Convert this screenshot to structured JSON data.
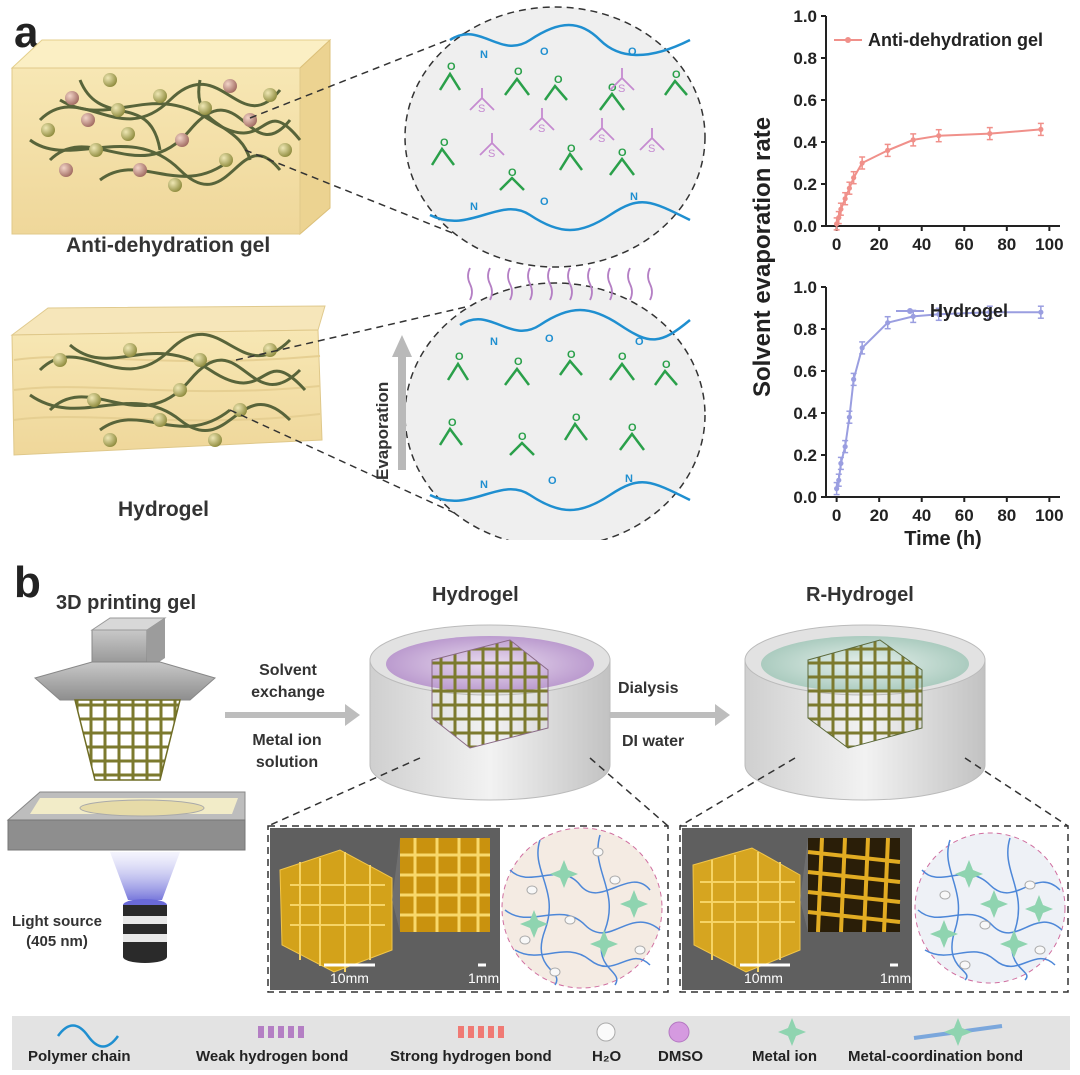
{
  "panel_a": {
    "letter": "a",
    "gel_label": "Anti-dehydration gel",
    "hydrogel_label": "Hydrogel",
    "evaporation_label": "Evaporation"
  },
  "panel_b": {
    "letter": "b",
    "printing_title": "3D printing gel",
    "light_source_line1": "Light source",
    "light_source_line2": "(405 nm)",
    "step1_top_line1": "Solvent",
    "step1_top_line2": "exchange",
    "step1_bottom_line1": "Metal ion",
    "step1_bottom_line2": "solution",
    "dish1_title": "Hydrogel",
    "step2_top": "Dialysis",
    "step2_bottom": "DI water",
    "dish2_title": "R-Hydrogel",
    "scale_large": "10mm",
    "scale_small": "1mm"
  },
  "legend": {
    "polymer_chain": "Polymer chain",
    "weak_hbond": "Weak hydrogen bond",
    "strong_hbond": "Strong hydrogen bond",
    "h2o": "H₂O",
    "dmso": "DMSO",
    "metal_ion": "Metal ion",
    "metal_coord": "Metal-coordination bond"
  },
  "colors": {
    "gel_series": "#f0908a",
    "hydrogel_series": "#9a9ee0",
    "polymer": "#1f8fd0",
    "weak_hbond": "#b47fc4",
    "strong_hbond": "#f07a74",
    "water": "#2aa04a",
    "dmso": "#c58ad0",
    "metal_ion": "#8fd4b0"
  },
  "chart_data": [
    {
      "type": "line",
      "series": [
        {
          "name": "Anti-dehydration gel",
          "x": [
            0,
            1,
            2,
            4,
            6,
            8,
            12,
            24,
            36,
            48,
            72,
            96
          ],
          "y": [
            0.01,
            0.04,
            0.08,
            0.13,
            0.18,
            0.23,
            0.3,
            0.36,
            0.41,
            0.43,
            0.44,
            0.46
          ]
        }
      ],
      "xlabel": "",
      "ylabel": "Solvent evaporation rate",
      "xlim": [
        -5,
        105
      ],
      "ylim": [
        0,
        1.0
      ],
      "xticks": [
        "0",
        "20",
        "40",
        "60",
        "80",
        "100"
      ],
      "yticks": [
        "0.0",
        "0.2",
        "0.4",
        "0.6",
        "0.8",
        "1.0"
      ],
      "legend": "top-right"
    },
    {
      "type": "line",
      "series": [
        {
          "name": "Hydrogel",
          "x": [
            0,
            1,
            2,
            4,
            6,
            8,
            12,
            24,
            36,
            48,
            72,
            96
          ],
          "y": [
            0.04,
            0.08,
            0.16,
            0.24,
            0.38,
            0.56,
            0.71,
            0.83,
            0.86,
            0.87,
            0.88,
            0.88
          ]
        }
      ],
      "xlabel": "Time (h)",
      "ylabel": "Solvent evaporation rate",
      "xlim": [
        -5,
        105
      ],
      "ylim": [
        0,
        1.0
      ],
      "xticks": [
        "0",
        "20",
        "40",
        "60",
        "80",
        "100"
      ],
      "yticks": [
        "0.0",
        "0.2",
        "0.4",
        "0.6",
        "0.8",
        "1.0"
      ],
      "legend": "top-right"
    }
  ]
}
